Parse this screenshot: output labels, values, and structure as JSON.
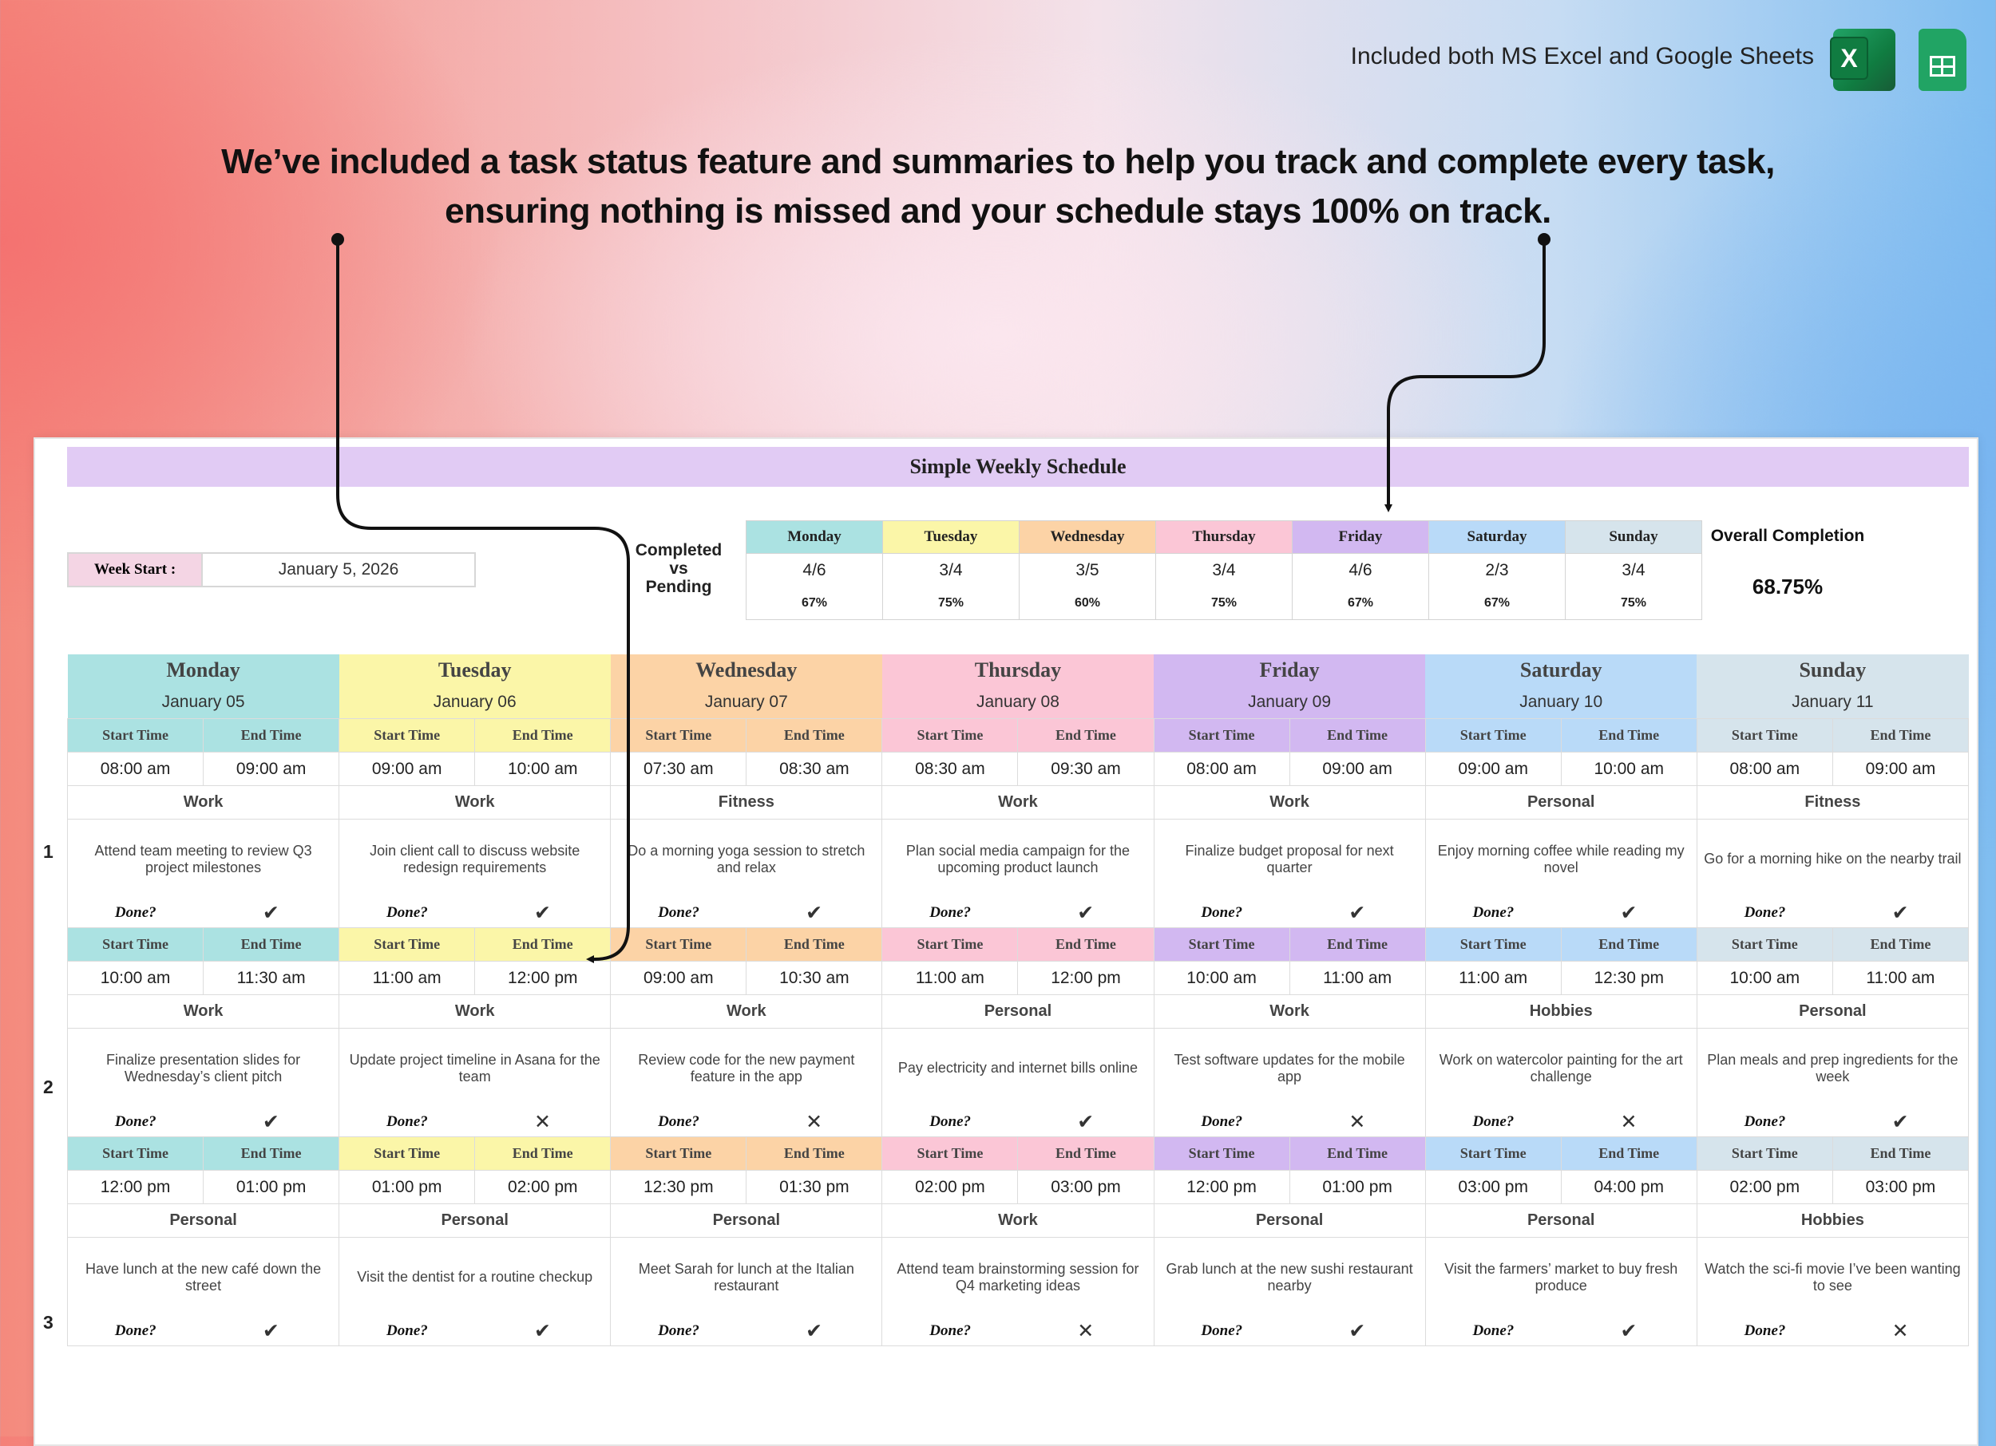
{
  "top_note": "Included both MS Excel and Google Sheets",
  "icons": [
    "excel-icon",
    "google-sheets-icon"
  ],
  "excel_badge": "X",
  "headline": {
    "line1": "We’ve included a task status feature and summaries to help you track and complete every task,",
    "line2": "ensuring nothing is missed and your schedule stays 100% on track."
  },
  "sheet": {
    "title": "Simple Weekly Schedule",
    "week_start_label": "Week Start :",
    "week_start_value": "January 5, 2026",
    "completed_vs_pending": [
      "Completed",
      "vs",
      "Pending"
    ],
    "overall_label": "Overall Completion",
    "overall_value": "68.75%",
    "done_label": "Done?",
    "start_label": "Start Time",
    "end_label": "End Time"
  },
  "summary": [
    {
      "day": "Monday",
      "ratio": "4/6",
      "pct": "67%",
      "color": "#abe2e2"
    },
    {
      "day": "Tuesday",
      "ratio": "3/4",
      "pct": "75%",
      "color": "#fbf6a8"
    },
    {
      "day": "Wednesday",
      "ratio": "3/5",
      "pct": "60%",
      "color": "#fcd3a6"
    },
    {
      "day": "Thursday",
      "ratio": "3/4",
      "pct": "75%",
      "color": "#fbc6d6"
    },
    {
      "day": "Friday",
      "ratio": "4/6",
      "pct": "67%",
      "color": "#d2b8f1"
    },
    {
      "day": "Saturday",
      "ratio": "2/3",
      "pct": "67%",
      "color": "#b9daf8"
    },
    {
      "day": "Sunday",
      "ratio": "3/4",
      "pct": "75%",
      "color": "#d6e4ec"
    }
  ],
  "days": [
    {
      "name": "Monday",
      "date": "January 05",
      "color": "#abe2e2"
    },
    {
      "name": "Tuesday",
      "date": "January 06",
      "color": "#fbf6a8"
    },
    {
      "name": "Wednesday",
      "date": "January 07",
      "color": "#fcd3a6"
    },
    {
      "name": "Thursday",
      "date": "January 08",
      "color": "#fbc6d6"
    },
    {
      "name": "Friday",
      "date": "January 09",
      "color": "#d2b8f1"
    },
    {
      "name": "Saturday",
      "date": "January 10",
      "color": "#b9daf8"
    },
    {
      "name": "Sunday",
      "date": "January 11",
      "color": "#d6e4ec"
    }
  ],
  "slots": [
    {
      "number": "1",
      "tasks": [
        {
          "start": "08:00 am",
          "end": "09:00 am",
          "category": "Work",
          "desc": "Attend team meeting to review Q3 project milestones",
          "done": true
        },
        {
          "start": "09:00 am",
          "end": "10:00 am",
          "category": "Work",
          "desc": "Join client call to discuss website redesign requirements",
          "done": true
        },
        {
          "start": "07:30 am",
          "end": "08:30 am",
          "category": "Fitness",
          "desc": "Do a morning yoga session to stretch and relax",
          "done": true
        },
        {
          "start": "08:30 am",
          "end": "09:30 am",
          "category": "Work",
          "desc": "Plan social media campaign for the upcoming product launch",
          "done": true
        },
        {
          "start": "08:00 am",
          "end": "09:00 am",
          "category": "Work",
          "desc": "Finalize budget proposal for next quarter",
          "done": true
        },
        {
          "start": "09:00 am",
          "end": "10:00 am",
          "category": "Personal",
          "desc": "Enjoy morning coffee while reading my novel",
          "done": true
        },
        {
          "start": "08:00 am",
          "end": "09:00 am",
          "category": "Fitness",
          "desc": "Go for a morning hike on the nearby trail",
          "done": true
        }
      ]
    },
    {
      "number": "2",
      "tasks": [
        {
          "start": "10:00 am",
          "end": "11:30 am",
          "category": "Work",
          "desc": "Finalize presentation slides for Wednesday’s client pitch",
          "done": true
        },
        {
          "start": "11:00 am",
          "end": "12:00 pm",
          "category": "Work",
          "desc": "Update project timeline in Asana for the team",
          "done": false
        },
        {
          "start": "09:00 am",
          "end": "10:30 am",
          "category": "Work",
          "desc": "Review code for the new payment feature in the app",
          "done": false
        },
        {
          "start": "11:00 am",
          "end": "12:00 pm",
          "category": "Personal",
          "desc": "Pay electricity and internet bills online",
          "done": true
        },
        {
          "start": "10:00 am",
          "end": "11:00 am",
          "category": "Work",
          "desc": "Test software updates for the mobile app",
          "done": false
        },
        {
          "start": "11:00 am",
          "end": "12:30 pm",
          "category": "Hobbies",
          "desc": "Work on watercolor painting for the art challenge",
          "done": false
        },
        {
          "start": "10:00 am",
          "end": "11:00 am",
          "category": "Personal",
          "desc": "Plan meals and prep ingredients for the week",
          "done": true
        }
      ]
    },
    {
      "number": "3",
      "tasks": [
        {
          "start": "12:00 pm",
          "end": "01:00 pm",
          "category": "Personal",
          "desc": "Have lunch at the new café down the street",
          "done": true
        },
        {
          "start": "01:00 pm",
          "end": "02:00 pm",
          "category": "Personal",
          "desc": "Visit the dentist for a routine checkup",
          "done": true
        },
        {
          "start": "12:30 pm",
          "end": "01:30 pm",
          "category": "Personal",
          "desc": "Meet Sarah for lunch at the Italian restaurant",
          "done": true
        },
        {
          "start": "02:00 pm",
          "end": "03:00 pm",
          "category": "Work",
          "desc": "Attend team brainstorming session for Q4 marketing ideas",
          "done": false
        },
        {
          "start": "12:00 pm",
          "end": "01:00 pm",
          "category": "Personal",
          "desc": "Grab lunch at the new sushi restaurant nearby",
          "done": true
        },
        {
          "start": "03:00 pm",
          "end": "04:00 pm",
          "category": "Personal",
          "desc": "Visit the farmers’ market to buy fresh produce",
          "done": true
        },
        {
          "start": "02:00 pm",
          "end": "03:00 pm",
          "category": "Hobbies",
          "desc": "Watch the sci-fi movie I’ve been wanting to see",
          "done": false
        }
      ]
    }
  ],
  "marks": {
    "done": "✔",
    "not_done": "✕"
  }
}
